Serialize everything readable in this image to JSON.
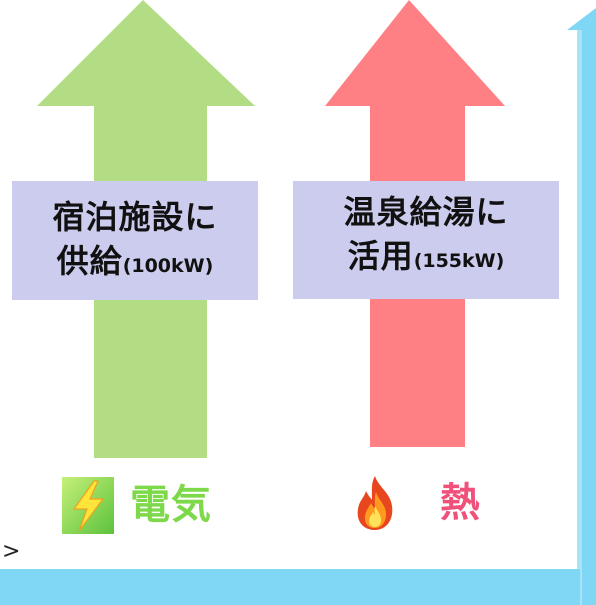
{
  "electricity": {
    "label_line1": "宿泊施設に",
    "label_line2_main": "供給",
    "label_line2_small": "(100kW)",
    "legend": "電気",
    "icon": "lightning-bolt-icon",
    "color": "#b3dd84"
  },
  "heat": {
    "label_line1": "温泉給湯に",
    "label_line2_main": "活用",
    "label_line2_small": "(155kW)",
    "legend": "熱",
    "icon": "fire-icon",
    "color": "#ff8084"
  },
  "cut_off_text": ">",
  "colors": {
    "label_box": "#ccccee",
    "frame_blue": "#7fd6f5",
    "electric_text": "#7ed94a",
    "heat_text": "#f0517a"
  }
}
